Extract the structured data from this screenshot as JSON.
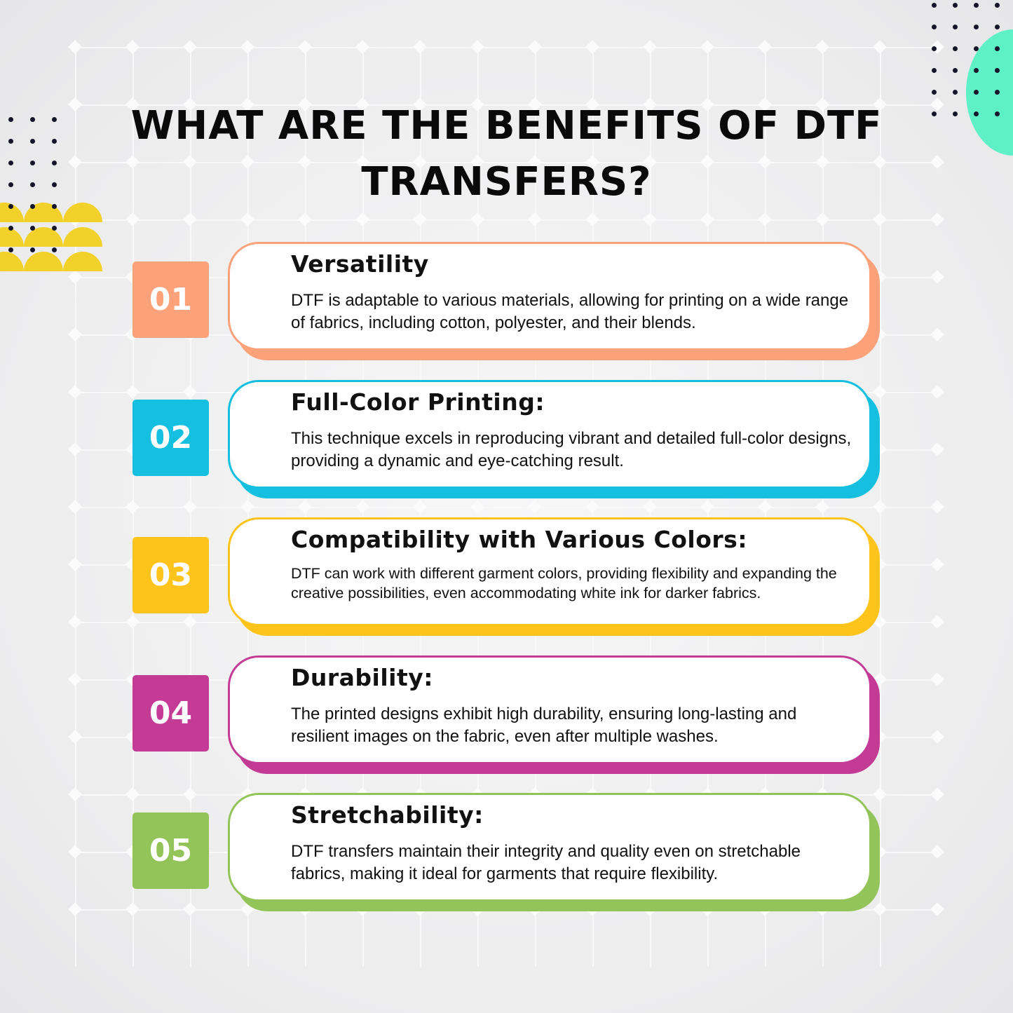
{
  "title": "WHAT ARE THE BENEFITS OF DTF TRANSFERS?",
  "colors": {
    "accent_mint": "#5ef0c6",
    "accent_yellow_deco": "#f2d22a"
  },
  "items": [
    {
      "number": "01",
      "heading": "Versatility",
      "text": "DTF is adaptable to various materials, allowing for printing on a wide range of fabrics, including cotton, polyester, and their blends.",
      "color": "#fca27a"
    },
    {
      "number": "02",
      "heading": "Full-Color Printing:",
      "text": "This technique excels in reproducing vibrant and detailed full-color designs, providing a dynamic and eye-catching result.",
      "color": "#14bfdf"
    },
    {
      "number": "03",
      "heading": "Compatibility with Various Colors:",
      "text": "DTF can work with different garment colors, providing flexibility and expanding the creative possibilities, even accommodating white ink for darker fabrics.",
      "color": "#fec41c"
    },
    {
      "number": "04",
      "heading": "Durability:",
      "text": "The printed designs exhibit high durability, ensuring long-lasting and resilient images on the fabric, even after multiple washes.",
      "color": "#c43b96"
    },
    {
      "number": "05",
      "heading": "Stretchability:",
      "text": "DTF transfers maintain their integrity and quality even on stretchable fabrics, making it ideal for garments that require flexibility.",
      "color": "#92c459"
    }
  ]
}
